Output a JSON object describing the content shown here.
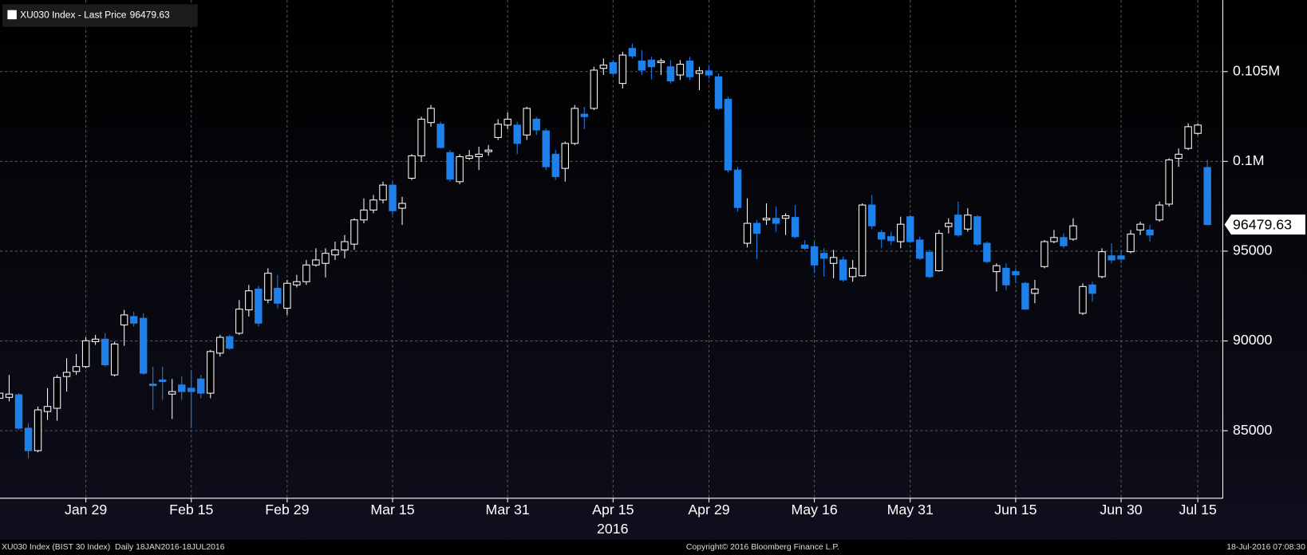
{
  "chart_data": {
    "type": "candlestick",
    "series_name": "XU030 Index - Last Price",
    "xlabel": "2016",
    "footer": {
      "left": "XU030 Index (BIST 30 Index)  Daily 18JAN2016-18JUL2016",
      "center": "Copyright© 2016 Bloomberg Finance L.P.",
      "right": "18-Jul-2016 07:08:30"
    },
    "up_color": "#ffffff",
    "down_color": "#1e80e8",
    "grid": true,
    "ylim": [
      81240,
      108980
    ],
    "yticks": [
      {
        "value": 105000,
        "label": "0.105M"
      },
      {
        "value": 100000,
        "label": "0.1M"
      },
      95000,
      90000,
      85000
    ],
    "categories": [
      null,
      null,
      null,
      null,
      null,
      null,
      null,
      null,
      null,
      "Jan 29",
      null,
      null,
      null,
      null,
      null,
      null,
      null,
      null,
      null,
      null,
      "Feb 15",
      null,
      null,
      null,
      null,
      null,
      null,
      null,
      null,
      null,
      "Feb 29",
      null,
      null,
      null,
      null,
      null,
      null,
      null,
      null,
      null,
      null,
      "Mar 15",
      null,
      null,
      null,
      null,
      null,
      null,
      null,
      null,
      null,
      null,
      null,
      "Mar 31",
      null,
      null,
      null,
      null,
      null,
      null,
      null,
      null,
      null,
      null,
      "Apr 15",
      null,
      null,
      null,
      null,
      null,
      null,
      null,
      null,
      null,
      "Apr 29",
      null,
      null,
      null,
      null,
      null,
      null,
      null,
      null,
      null,
      null,
      "May 16",
      null,
      null,
      null,
      null,
      null,
      null,
      null,
      null,
      null,
      "May 31",
      null,
      null,
      null,
      null,
      null,
      null,
      null,
      null,
      null,
      null,
      "Jun 15",
      null,
      null,
      null,
      null,
      null,
      null,
      null,
      null,
      null,
      null,
      "Jun 30",
      null,
      null,
      null,
      null,
      null,
      null,
      null,
      "Jul 15",
      null
    ],
    "open": [
      86810,
      86860,
      87000,
      85140,
      83890,
      86070,
      86250,
      88020,
      88300,
      88570,
      89960,
      90100,
      88110,
      90890,
      91360,
      91260,
      87600,
      87830,
      87040,
      87550,
      87370,
      87880,
      87090,
      89320,
      90240,
      90430,
      91730,
      92890,
      92280,
      92930,
      91820,
      93120,
      93300,
      94230,
      94320,
      94790,
      95070,
      95390,
      96740,
      97290,
      97850,
      98680,
      97390,
      99060,
      100310,
      102160,
      102070,
      100490,
      98870,
      100170,
      100260,
      100540,
      101330,
      102020,
      102020,
      101470,
      102350,
      101700,
      100400,
      99610,
      101000,
      102630,
      102950,
      105180,
      105500,
      104340,
      106290,
      105590,
      105640,
      105500,
      105270,
      104810,
      105590,
      104900,
      105040,
      104710,
      103460,
      99520,
      95440,
      96550,
      96740,
      96830,
      96830,
      96880,
      95340,
      95250,
      94880,
      94320,
      94510,
      93580,
      93630,
      97570,
      96040,
      95810,
      95530,
      96920,
      95620,
      94930,
      93910,
      96370,
      97010,
      96230,
      96920,
      95440,
      93860,
      94050,
      93860,
      93210,
      92650,
      94140,
      95530,
      95760,
      95670,
      91540,
      93120,
      93580,
      94740,
      94740,
      94970,
      96180,
      96180,
      96740,
      97620,
      100170,
      100720,
      101560,
      99660
    ],
    "high": [
      87550,
      88110,
      87090,
      85420,
      86350,
      87370,
      88110,
      89040,
      89270,
      90200,
      90340,
      90430,
      89960,
      91730,
      91630,
      91540,
      88570,
      88570,
      87880,
      88020,
      88340,
      88110,
      89500,
      90340,
      90340,
      92280,
      93120,
      93070,
      94050,
      93680,
      93400,
      93680,
      94510,
      95160,
      95160,
      95530,
      95900,
      96830,
      97940,
      98130,
      98870,
      98870,
      98030,
      100400,
      102490,
      103140,
      102210,
      100630,
      100400,
      100630,
      100820,
      100910,
      102350,
      102720,
      102210,
      103040,
      102490,
      101840,
      100630,
      101100,
      103140,
      103040,
      105270,
      105730,
      105640,
      106100,
      106570,
      106200,
      105830,
      105730,
      105640,
      105640,
      105830,
      105270,
      105360,
      104900,
      103600,
      99700,
      97940,
      96740,
      97660,
      97480,
      97110,
      97570,
      95620,
      95530,
      95160,
      95070,
      94700,
      94510,
      97660,
      98130,
      96180,
      96090,
      96920,
      97010,
      95810,
      95070,
      96180,
      96830,
      97760,
      97390,
      97010,
      95530,
      94320,
      94320,
      94050,
      93300,
      93400,
      95620,
      96180,
      95990,
      96830,
      93210,
      93300,
      95160,
      95440,
      95070,
      96180,
      96640,
      96460,
      97760,
      100170,
      100720,
      102120,
      102120,
      100080
    ],
    "low": [
      86720,
      86630,
      85050,
      83470,
      83800,
      85600,
      85560,
      87180,
      88110,
      88480,
      89780,
      88570,
      88020,
      89730,
      90800,
      88110,
      86160,
      86720,
      85650,
      86720,
      85140,
      86810,
      86810,
      89130,
      89500,
      90340,
      91360,
      90800,
      92100,
      91820,
      91450,
      92980,
      93120,
      94140,
      93540,
      94510,
      94600,
      95070,
      96550,
      97110,
      97660,
      97010,
      96460,
      98960,
      99980,
      101930,
      100720,
      98870,
      98730,
      100080,
      99520,
      100310,
      101190,
      101790,
      100400,
      101190,
      101470,
      99520,
      98960,
      98870,
      100910,
      101790,
      102860,
      104810,
      104810,
      104060,
      105730,
      104810,
      104570,
      104810,
      104340,
      104530,
      104530,
      103970,
      104620,
      102860,
      99380,
      97200,
      95210,
      94560,
      96460,
      96090,
      95900,
      95720,
      95070,
      93770,
      93580,
      93490,
      93300,
      93300,
      93580,
      96230,
      95160,
      95340,
      95160,
      95440,
      94510,
      93490,
      93860,
      95990,
      95810,
      96090,
      95300,
      94320,
      92750,
      92840,
      93210,
      91730,
      92100,
      94050,
      95440,
      95160,
      95580,
      91450,
      92190,
      93490,
      94320,
      94320,
      94880,
      95900,
      95530,
      96640,
      97480,
      99700,
      100630,
      101470,
      96460
    ],
    "close": [
      87090,
      87040,
      85140,
      83890,
      86160,
      86350,
      87970,
      88250,
      88570,
      90010,
      90100,
      88670,
      89830,
      91450,
      90990,
      88200,
      87510,
      87740,
      87180,
      87180,
      87180,
      87090,
      89410,
      90200,
      89590,
      91770,
      92790,
      90990,
      93770,
      92100,
      93210,
      93300,
      94230,
      94510,
      94880,
      95070,
      95530,
      96740,
      97290,
      97850,
      98680,
      97250,
      97660,
      100310,
      102350,
      102950,
      100770,
      99010,
      100260,
      100310,
      100400,
      100630,
      102070,
      102350,
      101000,
      102950,
      101750,
      99700,
      99150,
      101000,
      102950,
      102490,
      105080,
      105360,
      104900,
      105920,
      105870,
      105080,
      105270,
      105590,
      104480,
      105410,
      104710,
      105040,
      104810,
      102950,
      99520,
      97430,
      96550,
      95990,
      96830,
      96550,
      96970,
      95810,
      95160,
      94230,
      94600,
      94650,
      93400,
      94050,
      97570,
      96410,
      95670,
      95580,
      96500,
      95530,
      94600,
      93580,
      95990,
      96550,
      95900,
      97010,
      95390,
      94420,
      94190,
      93120,
      93680,
      91770,
      92890,
      95530,
      95760,
      95300,
      96410,
      93030,
      92650,
      94970,
      94510,
      94560,
      95950,
      96500,
      95900,
      97570,
      100080,
      100400,
      101930,
      102020,
      96479.63
    ]
  }
}
